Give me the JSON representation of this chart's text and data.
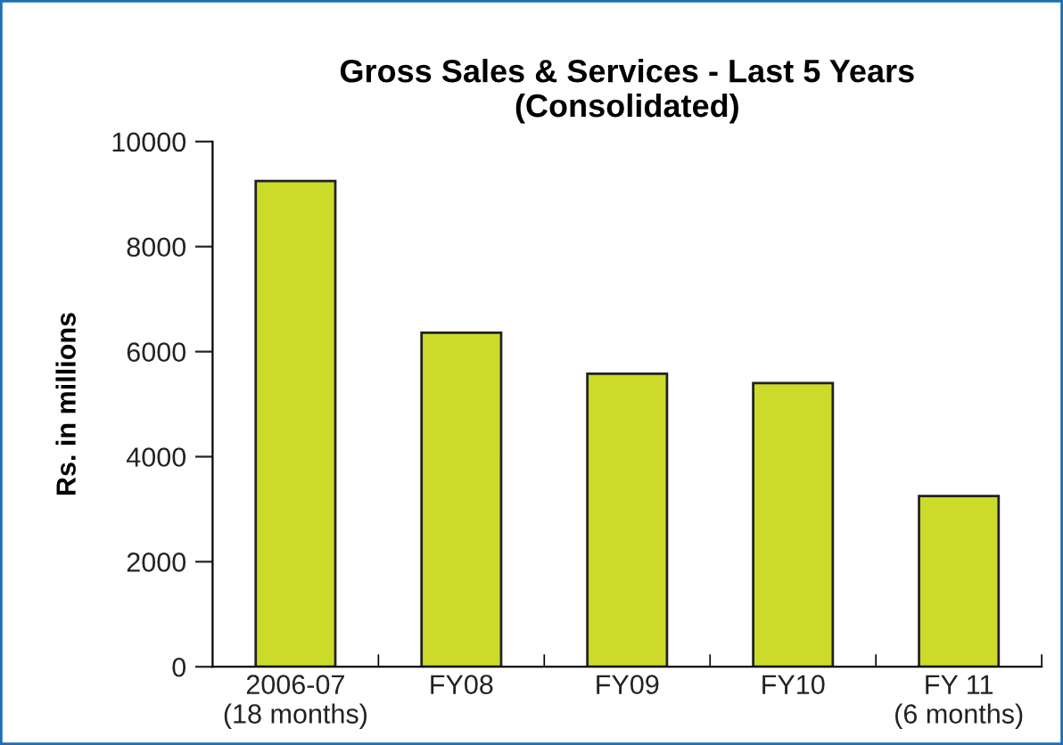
{
  "chart_data": {
    "type": "bar",
    "title": "Gross Sales & Services - Last 5 Years\n(Consolidated)",
    "ylabel": "Rs. in millions",
    "categories": [
      "2006-07\n(18 months)",
      "FY08",
      "FY09",
      "FY10",
      "FY 11\n(6 months)"
    ],
    "values": [
      9250,
      6360,
      5580,
      5400,
      3250
    ],
    "color": "#ccdb2a",
    "ylim": [
      0,
      10000
    ],
    "yticks": [
      0,
      2000,
      4000,
      6000,
      8000,
      10000
    ],
    "grid": false,
    "legend": false
  }
}
